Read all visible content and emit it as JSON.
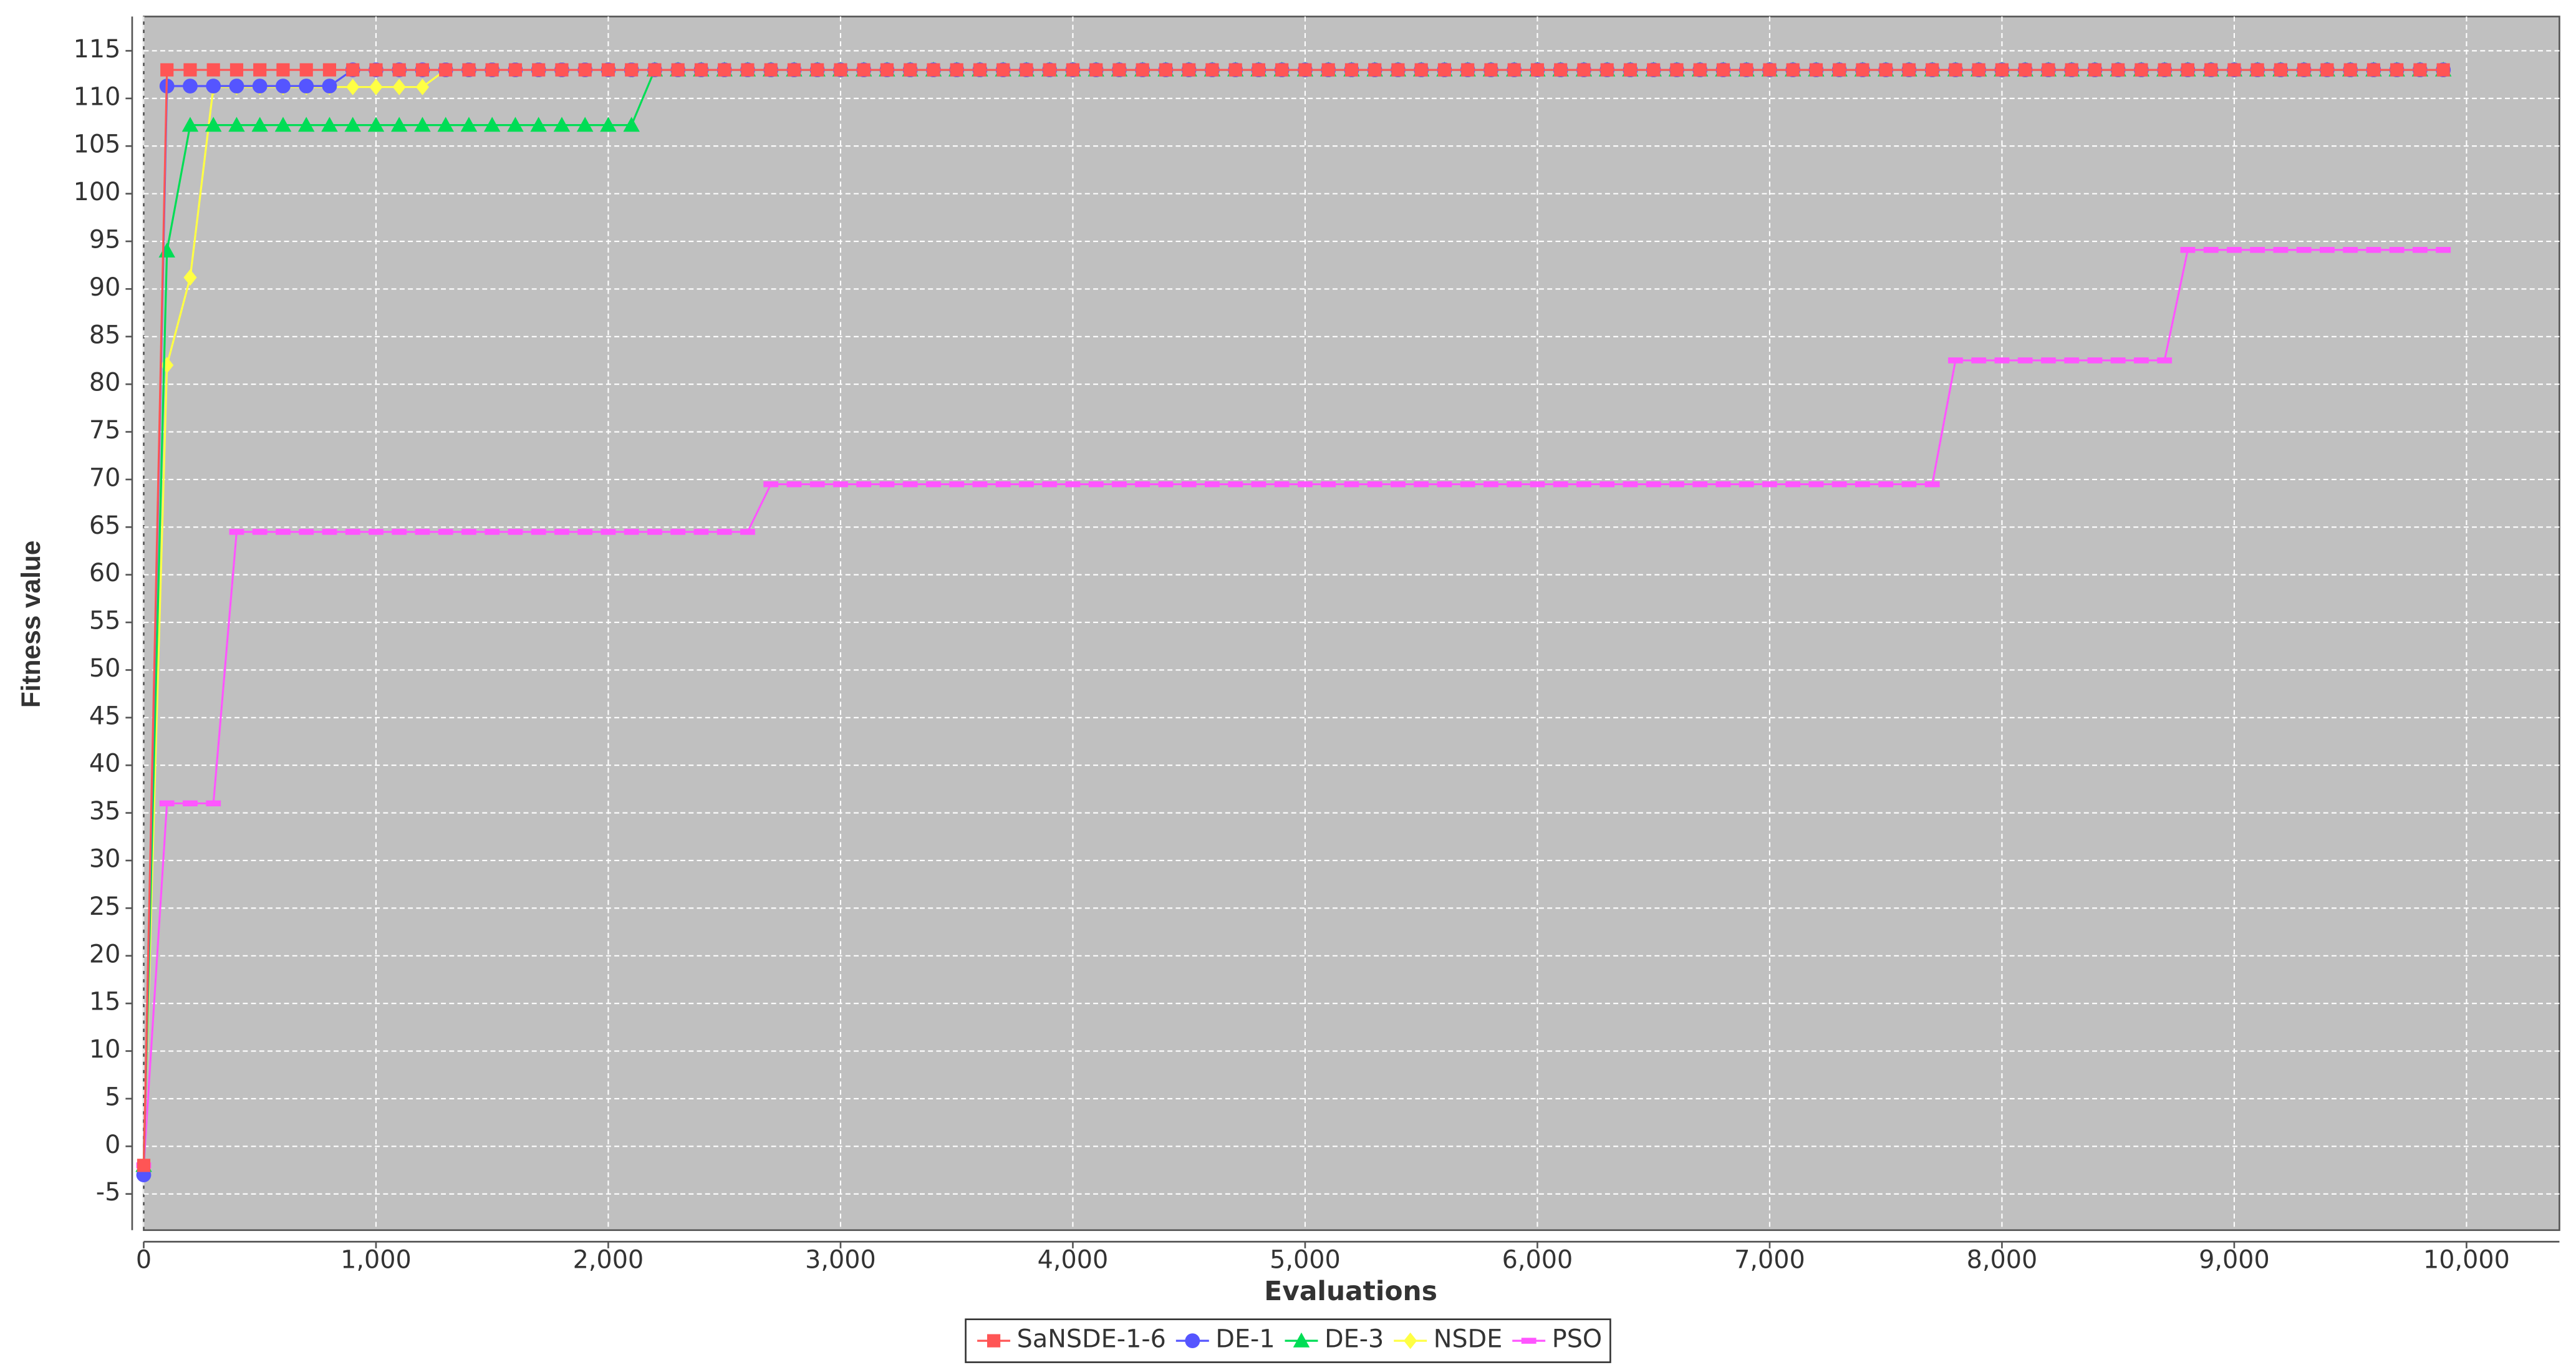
{
  "chart_data": {
    "type": "line",
    "x_label": "Evaluations",
    "y_label": "Fitness value",
    "x": [
      0,
      100,
      200,
      300,
      400,
      500,
      600,
      700,
      800,
      900,
      1000,
      1100,
      1200,
      1300,
      1400,
      1500,
      1600,
      1700,
      1800,
      1900,
      2000,
      2100,
      2200,
      2300,
      2400,
      2500,
      2600,
      2700,
      2800,
      2900,
      3000,
      3100,
      3200,
      3300,
      3400,
      3500,
      3600,
      3700,
      3800,
      3900,
      4000,
      4100,
      4200,
      4300,
      4400,
      4500,
      4600,
      4700,
      4800,
      4900,
      5000,
      5100,
      5200,
      5300,
      5400,
      5500,
      5600,
      5700,
      5800,
      5900,
      6000,
      6100,
      6200,
      6300,
      6400,
      6500,
      6600,
      6700,
      6800,
      6900,
      7000,
      7100,
      7200,
      7300,
      7400,
      7500,
      7600,
      7700,
      7800,
      7900,
      8000,
      8100,
      8200,
      8300,
      8400,
      8500,
      8600,
      8700,
      8800,
      8900,
      9000,
      9100,
      9200,
      9300,
      9400,
      9500,
      9600,
      9700,
      9800,
      9900
    ],
    "series": [
      {
        "name": "SaNSDE-1-6",
        "color": "#ff5555",
        "marker": "square",
        "values": [
          -2,
          113,
          113,
          113,
          113,
          113,
          113,
          113,
          113,
          113,
          113,
          113,
          113,
          113,
          113,
          113,
          113,
          113,
          113,
          113,
          113,
          113,
          113,
          113,
          113,
          113,
          113,
          113,
          113,
          113,
          113,
          113,
          113,
          113,
          113,
          113,
          113,
          113,
          113,
          113,
          113,
          113,
          113,
          113,
          113,
          113,
          113,
          113,
          113,
          113,
          113,
          113,
          113,
          113,
          113,
          113,
          113,
          113,
          113,
          113,
          113,
          113,
          113,
          113,
          113,
          113,
          113,
          113,
          113,
          113,
          113,
          113,
          113,
          113,
          113,
          113,
          113,
          113,
          113,
          113,
          113,
          113,
          113,
          113,
          113,
          113,
          113,
          113,
          113,
          113,
          113,
          113,
          113,
          113,
          113,
          113,
          113,
          113,
          113,
          113
        ]
      },
      {
        "name": "DE-1",
        "color": "#5555ff",
        "marker": "circle",
        "values": [
          -3,
          111.3,
          111.3,
          111.3,
          111.3,
          111.3,
          111.3,
          111.3,
          111.3,
          113,
          113,
          113,
          113,
          113,
          113,
          113,
          113,
          113,
          113,
          113,
          113,
          113,
          113,
          113,
          113,
          113,
          113,
          113,
          113,
          113,
          113,
          113,
          113,
          113,
          113,
          113,
          113,
          113,
          113,
          113,
          113,
          113,
          113,
          113,
          113,
          113,
          113,
          113,
          113,
          113,
          113,
          113,
          113,
          113,
          113,
          113,
          113,
          113,
          113,
          113,
          113,
          113,
          113,
          113,
          113,
          113,
          113,
          113,
          113,
          113,
          113,
          113,
          113,
          113,
          113,
          113,
          113,
          113,
          113,
          113,
          113,
          113,
          113,
          113,
          113,
          113,
          113,
          113,
          113,
          113,
          113,
          113,
          113,
          113,
          113,
          113,
          113,
          113,
          113,
          113
        ]
      },
      {
        "name": "DE-3",
        "color": "#00dd55",
        "marker": "triangle",
        "values": [
          -2,
          94,
          107.2,
          107.2,
          107.2,
          107.2,
          107.2,
          107.2,
          107.2,
          107.2,
          107.2,
          107.2,
          107.2,
          107.2,
          107.2,
          107.2,
          107.2,
          107.2,
          107.2,
          107.2,
          107.2,
          107.2,
          113,
          113,
          113,
          113,
          113,
          113,
          113,
          113,
          113,
          113,
          113,
          113,
          113,
          113,
          113,
          113,
          113,
          113,
          113,
          113,
          113,
          113,
          113,
          113,
          113,
          113,
          113,
          113,
          113,
          113,
          113,
          113,
          113,
          113,
          113,
          113,
          113,
          113,
          113,
          113,
          113,
          113,
          113,
          113,
          113,
          113,
          113,
          113,
          113,
          113,
          113,
          113,
          113,
          113,
          113,
          113,
          113,
          113,
          113,
          113,
          113,
          113,
          113,
          113,
          113,
          113,
          113,
          113,
          113,
          113,
          113,
          113,
          113,
          113,
          113,
          113,
          113,
          113
        ]
      },
      {
        "name": "NSDE",
        "color": "#ffff44",
        "marker": "diamond",
        "values": [
          -2,
          82,
          91.2,
          111.2,
          111.2,
          111.2,
          111.2,
          111.2,
          111.2,
          111.2,
          111.2,
          111.2,
          111.2,
          113,
          113,
          113,
          113,
          113,
          113,
          113,
          113,
          113,
          113,
          113,
          113,
          113,
          113,
          113,
          113,
          113,
          113,
          113,
          113,
          113,
          113,
          113,
          113,
          113,
          113,
          113,
          113,
          113,
          113,
          113,
          113,
          113,
          113,
          113,
          113,
          113,
          113,
          113,
          113,
          113,
          113,
          113,
          113,
          113,
          113,
          113,
          113,
          113,
          113,
          113,
          113,
          113,
          113,
          113,
          113,
          113,
          113,
          113,
          113,
          113,
          113,
          113,
          113,
          113,
          113,
          113,
          113,
          113,
          113,
          113,
          113,
          113,
          113,
          113,
          113,
          113,
          113,
          113,
          113,
          113,
          113,
          113,
          113,
          113,
          113,
          113
        ]
      },
      {
        "name": "PSO",
        "color": "#ff55ff",
        "marker": "bar",
        "values": [
          -2,
          36,
          36,
          36,
          64.5,
          64.5,
          64.5,
          64.5,
          64.5,
          64.5,
          64.5,
          64.5,
          64.5,
          64.5,
          64.5,
          64.5,
          64.5,
          64.5,
          64.5,
          64.5,
          64.5,
          64.5,
          64.5,
          64.5,
          64.5,
          64.5,
          64.5,
          69.5,
          69.5,
          69.5,
          69.5,
          69.5,
          69.5,
          69.5,
          69.5,
          69.5,
          69.5,
          69.5,
          69.5,
          69.5,
          69.5,
          69.5,
          69.5,
          69.5,
          69.5,
          69.5,
          69.5,
          69.5,
          69.5,
          69.5,
          69.5,
          69.5,
          69.5,
          69.5,
          69.5,
          69.5,
          69.5,
          69.5,
          69.5,
          69.5,
          69.5,
          69.5,
          69.5,
          69.5,
          69.5,
          69.5,
          69.5,
          69.5,
          69.5,
          69.5,
          69.5,
          69.5,
          69.5,
          69.5,
          69.5,
          69.5,
          69.5,
          69.5,
          82.5,
          82.5,
          82.5,
          82.5,
          82.5,
          82.5,
          82.5,
          82.5,
          82.5,
          82.5,
          94.1,
          94.1,
          94.1,
          94.1,
          94.1,
          94.1,
          94.1,
          94.1,
          94.1,
          94.1,
          94.1,
          94.1
        ]
      }
    ],
    "xlim": [
      0,
      10400
    ],
    "ylim": [
      -8.8,
      118.6
    ],
    "xticks": [
      0,
      {
        "value": 1000,
        "label": "1,000"
      },
      {
        "value": 2000,
        "label": "2,000"
      },
      {
        "value": 3000,
        "label": "3,000"
      },
      {
        "value": 4000,
        "label": "4,000"
      },
      {
        "value": 5000,
        "label": "5,000"
      },
      {
        "value": 6000,
        "label": "6,000"
      },
      {
        "value": 7000,
        "label": "7,000"
      },
      {
        "value": 8000,
        "label": "8,000"
      },
      {
        "value": 9000,
        "label": "9,000"
      },
      {
        "value": 10000,
        "label": "10,000"
      }
    ],
    "yticks": [
      -5,
      0,
      5,
      10,
      15,
      20,
      25,
      30,
      35,
      40,
      45,
      50,
      55,
      60,
      65,
      70,
      75,
      80,
      85,
      90,
      95,
      100,
      105,
      110,
      115
    ],
    "grid": true,
    "plot_background": "#c0c0c0",
    "legend": "bottom"
  }
}
